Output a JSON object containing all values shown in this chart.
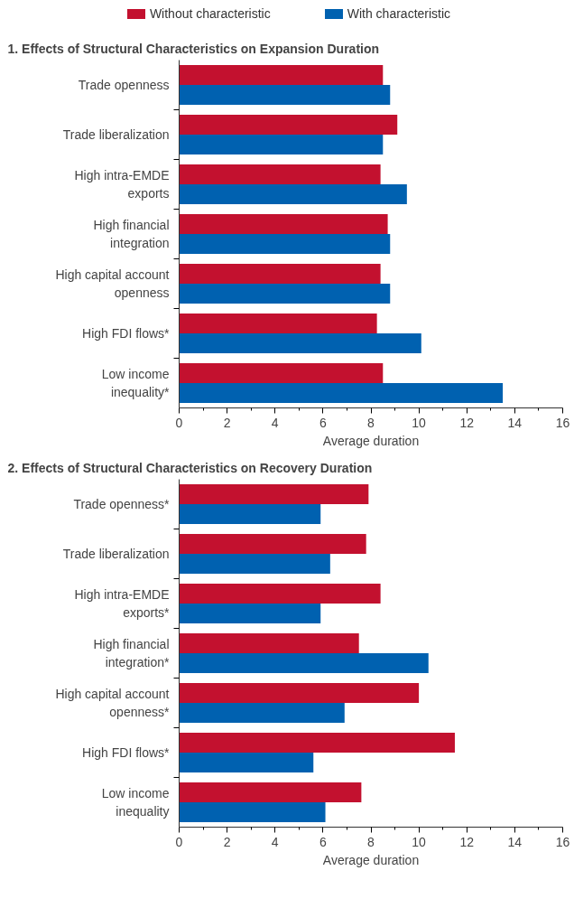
{
  "chart_data": [
    {
      "type": "bar",
      "orientation": "horizontal",
      "title": "1. Effects of Structural Characteristics on Expansion Duration",
      "xlabel": "Average duration",
      "categories": [
        "Trade openness",
        "Trade liberalization",
        "High intra-EMDE\nexports",
        "High financial\nintegration",
        "High capital account\nopenness",
        "High FDI flows*",
        "Low income\ninequality*"
      ],
      "series": [
        {
          "name": "Without characteristic",
          "color": "#c3112f",
          "values": [
            8.5,
            9.1,
            8.4,
            8.7,
            8.4,
            8.25,
            8.5
          ]
        },
        {
          "name": "With characteristic",
          "color": "#0061b0",
          "values": [
            8.8,
            8.5,
            9.5,
            8.8,
            8.8,
            10.1,
            13.5
          ]
        }
      ],
      "xlim": [
        0,
        16
      ],
      "xticks": [
        0,
        2,
        4,
        6,
        8,
        10,
        12,
        14,
        16
      ],
      "grid": false,
      "legend": "top"
    },
    {
      "type": "bar",
      "orientation": "horizontal",
      "title": "2. Effects of Structural Characteristics on Recovery Duration",
      "xlabel": "Average duration",
      "categories": [
        "Trade openness*",
        "Trade liberalization",
        "High intra-EMDE\nexports*",
        "High financial\nintegration*",
        "High capital account\nopenness*",
        "High FDI flows*",
        "Low income\ninequality"
      ],
      "series": [
        {
          "color": "#c3112f",
          "values": [
            7.9,
            7.8,
            8.4,
            7.5,
            10.0,
            11.5,
            7.6
          ]
        },
        {
          "color": "#0061b0",
          "values": [
            5.9,
            6.3,
            5.9,
            10.4,
            6.9,
            5.6,
            6.1
          ]
        }
      ],
      "xlim": [
        0,
        16
      ],
      "xticks": [
        0,
        2,
        4,
        6,
        8,
        10,
        12,
        14,
        16
      ],
      "grid": false
    }
  ]
}
